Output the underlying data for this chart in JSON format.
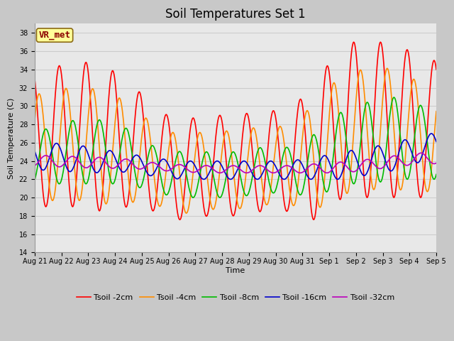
{
  "title": "Soil Temperatures Set 1",
  "xlabel": "Time",
  "ylabel": "Soil Temperature (C)",
  "annotation_text": "VR_met",
  "annotation_bg": "#FFFF99",
  "annotation_border": "#8B6914",
  "annotation_text_color": "#8B0000",
  "ylim": [
    14,
    39
  ],
  "yticks": [
    14,
    16,
    18,
    20,
    22,
    24,
    26,
    28,
    30,
    32,
    34,
    36,
    38
  ],
  "x_labels": [
    "Aug 21",
    "Aug 22",
    "Aug 23",
    "Aug 24",
    "Aug 25",
    "Aug 26",
    "Aug 27",
    "Aug 28",
    "Aug 29",
    "Aug 30",
    "Aug 31",
    "Sep 1",
    "Sep 2",
    "Sep 3",
    "Sep 4",
    "Sep 5"
  ],
  "series_colors": [
    "#FF0000",
    "#FF8C00",
    "#00BB00",
    "#0000CC",
    "#BB00BB"
  ],
  "series_labels": [
    "Tsoil -2cm",
    "Tsoil -4cm",
    "Tsoil -8cm",
    "Tsoil -16cm",
    "Tsoil -32cm"
  ],
  "series_linewidths": [
    1.2,
    1.2,
    1.2,
    1.2,
    1.2
  ],
  "grid_color": "#CCCCCC",
  "plot_bg_color": "#E8E8E8",
  "fig_bg_color": "#C8C8C8",
  "title_fontsize": 12,
  "axis_fontsize": 8,
  "tick_fontsize": 7,
  "legend_fontsize": 8
}
